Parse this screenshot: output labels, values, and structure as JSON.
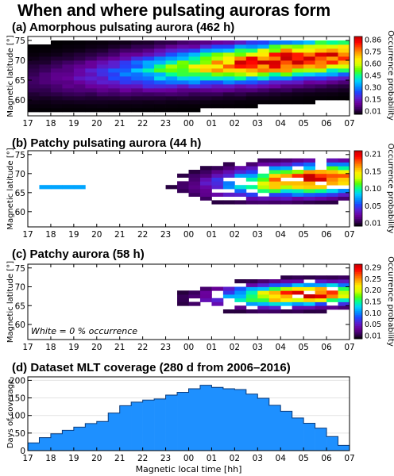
{
  "title": "When and where pulsating auroras form",
  "colors": {
    "colormap": [
      "#000000",
      "#3c0060",
      "#6a009c",
      "#5a1fd0",
      "#1f45ff",
      "#0090ff",
      "#00d0ff",
      "#00ff96",
      "#5aff00",
      "#d8ff00",
      "#ffee00",
      "#ffa500",
      "#ff5500",
      "#ff0000",
      "#c80000"
    ],
    "coverage_fill": "#1e90ff"
  },
  "chart_data": [
    {
      "type": "heatmap",
      "title": "(a) Amorphous pulsating aurora (462 h)",
      "ylabel": "Magnetic latitude [°]",
      "colorbar_label": "Occurrence probability",
      "colorbar_ticks": [
        "0.86",
        "0.75",
        "0.60",
        "0.45",
        "0.30",
        "0.15",
        "0.01"
      ],
      "vmax": 0.86,
      "xticks": [
        "17",
        "18",
        "19",
        "20",
        "21",
        "22",
        "23",
        "00",
        "01",
        "02",
        "03",
        "04",
        "05",
        "06",
        "07"
      ],
      "yticks": [
        "60",
        "65",
        "70",
        "75"
      ],
      "xlim": [
        17,
        31
      ],
      "ylim": [
        56,
        76
      ],
      "cell": {
        "dx_h": 0.5,
        "dy_deg": 1
      },
      "pattern": {
        "amp": 0.84,
        "peak_mlt": 28.6,
        "width_h": 5.0,
        "lat_start": 65.0,
        "lat_slope": 0.45,
        "lat_width": 3.2,
        "lat_lo": 57,
        "lat_hi": 75,
        "min_visible": 0.002
      }
    },
    {
      "type": "heatmap",
      "title": "(b) Patchy pulsating aurora (44 h)",
      "ylabel": "Magnetic latitude [°]",
      "colorbar_label": "Occurrence probability",
      "colorbar_ticks": [
        "0.21",
        "0.15",
        "0.10",
        "0.05",
        "0.01"
      ],
      "vmax": 0.21,
      "xticks": [
        "17",
        "18",
        "19",
        "20",
        "21",
        "22",
        "23",
        "00",
        "01",
        "02",
        "03",
        "04",
        "05",
        "06",
        "07"
      ],
      "yticks": [
        "60",
        "65",
        "70",
        "75"
      ],
      "xlim": [
        17,
        31
      ],
      "ylim": [
        56,
        76
      ],
      "cell": {
        "dx_h": 0.5,
        "dy_deg": 1
      },
      "pattern": {
        "amp": 0.2,
        "peak_mlt": 29.3,
        "width_h": 2.5,
        "lat_start": 64.8,
        "lat_slope": 0.3,
        "lat_width": 2.6,
        "lat_lo": 58,
        "lat_hi": 74,
        "mlt_start": 23.0,
        "min_visible": 0.01,
        "extra_cells": [
          [
            17.5,
            66
          ],
          [
            18.0,
            66
          ],
          [
            18.5,
            66
          ],
          [
            19.0,
            66
          ]
        ]
      }
    },
    {
      "type": "heatmap",
      "title": "(c) Patchy aurora (58 h)",
      "ylabel": "Magnetic latitude [°]",
      "colorbar_label": "Occurrence probability",
      "colorbar_ticks": [
        "0.29",
        "0.25",
        "0.20",
        "0.15",
        "0.10",
        "0.05",
        "0.01"
      ],
      "vmax": 0.29,
      "annotation": "White = 0 % occurrence",
      "xticks": [
        "17",
        "18",
        "19",
        "20",
        "21",
        "22",
        "23",
        "00",
        "01",
        "02",
        "03",
        "04",
        "05",
        "06",
        "07"
      ],
      "yticks": [
        "60",
        "65",
        "70",
        "75"
      ],
      "xlim": [
        17,
        31
      ],
      "ylim": [
        56,
        76
      ],
      "cell": {
        "dx_h": 0.5,
        "dy_deg": 1
      },
      "pattern": {
        "amp": 0.28,
        "peak_mlt": 28.9,
        "width_h": 2.2,
        "lat_start": 65.6,
        "lat_slope": 0.2,
        "lat_width": 1.9,
        "lat_lo": 59,
        "lat_hi": 74,
        "mlt_start": 23.0,
        "min_visible": 0.012
      }
    },
    {
      "type": "bar",
      "title": "(d) Dataset MLT coverage (280 d from 2006–2016)",
      "xlabel": "Magnetic local time [hh]",
      "ylabel": "Days of coverage",
      "xticks": [
        "17",
        "18",
        "19",
        "20",
        "21",
        "22",
        "23",
        "00",
        "01",
        "02",
        "03",
        "04",
        "05",
        "06",
        "07"
      ],
      "yticks": [
        "0",
        "50",
        "100",
        "150",
        "200"
      ],
      "xlim": [
        17,
        31
      ],
      "ylim": [
        0,
        210
      ],
      "bin_width_h": 0.5,
      "x_start": [
        17,
        17.5,
        18,
        18.5,
        19,
        19.5,
        20,
        20.5,
        21,
        21.5,
        22,
        22.5,
        23,
        23.5,
        24,
        24.5,
        25,
        25.5,
        26,
        26.5,
        27,
        27.5,
        28,
        28.5,
        29,
        29.5,
        30,
        30.5
      ],
      "values": [
        22,
        37,
        48,
        58,
        67,
        77,
        83,
        107,
        128,
        138,
        144,
        147,
        158,
        166,
        176,
        186,
        180,
        176,
        174,
        161,
        149,
        129,
        112,
        93,
        78,
        64,
        40,
        15
      ]
    }
  ]
}
